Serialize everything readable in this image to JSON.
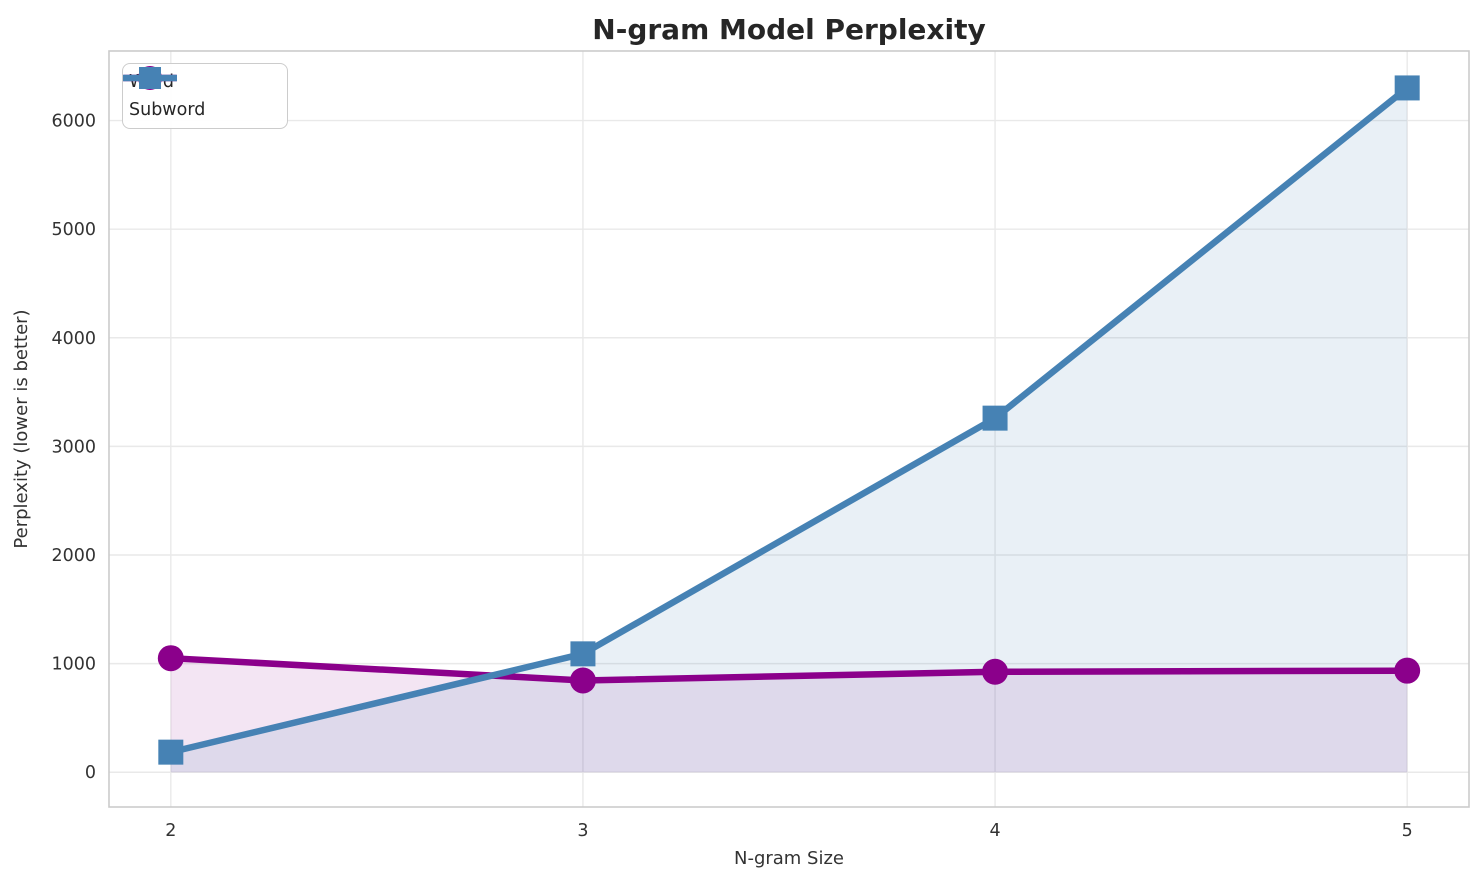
{
  "chart_data": {
    "type": "line",
    "title": "N-gram Model Perplexity",
    "xlabel": "N-gram Size",
    "ylabel": "Perplexity (lower is better)",
    "x": [
      2,
      3,
      4,
      5
    ],
    "series": [
      {
        "name": "Word",
        "color": "#8B008B",
        "marker": "circle",
        "values": [
          1050,
          845,
          925,
          935
        ],
        "fill_to_zero": true,
        "fill_opacity": 0.1
      },
      {
        "name": "Subword",
        "color": "#4682B4",
        "marker": "square",
        "values": [
          185,
          1090,
          3260,
          6300
        ],
        "fill_to_zero": true,
        "fill_opacity": 0.12
      }
    ],
    "xticks": [
      "2",
      "3",
      "4",
      "5"
    ],
    "xtick_values": [
      2,
      3,
      4,
      5
    ],
    "yticks": [
      "0",
      "1000",
      "2000",
      "3000",
      "4000",
      "5000",
      "6000"
    ],
    "ytick_values": [
      0,
      1000,
      2000,
      3000,
      4000,
      5000,
      6000
    ],
    "xlim": [
      1.85,
      5.15
    ],
    "ylim": [
      -320,
      6640
    ],
    "grid": true,
    "legend_position": "upper-left",
    "colors": {
      "background": "#FFFFFF",
      "grid": "#E9E9E9",
      "spine": "#CBCBCB",
      "title_text": "#262626",
      "tick_text": "#333333",
      "word_series": "#8B008B",
      "subword_series": "#4682B4"
    }
  }
}
